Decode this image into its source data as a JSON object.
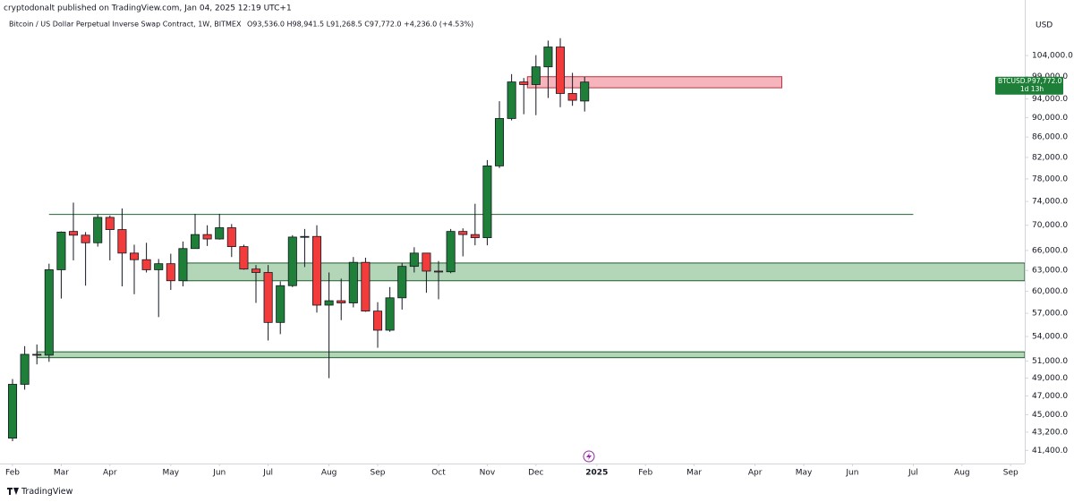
{
  "header": {
    "published": "cryptodonalt published on TradingView.com, Jan 04, 2025 12:19 UTC+1",
    "symbol_line": "Bitcoin / US Dollar Perpetual Inverse Swap Contract, 1W, BITMEX",
    "ohlc": "O93,536.0 H98,941.5 L91,268.5 C97,772.0 +4,236.0 (+4.53%)"
  },
  "footer": {
    "brand": "TradingView"
  },
  "chart_data": {
    "type": "candlestick",
    "axis_unit": "USD",
    "log_scale": true,
    "up_color": "#1e7f38",
    "down_color": "#f23b3b",
    "x": [
      0,
      1,
      2,
      3,
      4,
      5,
      6,
      7,
      8,
      9,
      10,
      11,
      12,
      13,
      14,
      15,
      16,
      17,
      18,
      19,
      20,
      21,
      22,
      23,
      24,
      25,
      26,
      27,
      28,
      29,
      30,
      31,
      32,
      33,
      34,
      35,
      36,
      37,
      38,
      39,
      40,
      41,
      42,
      43,
      44,
      45,
      46,
      47
    ],
    "open": [
      42600,
      48300,
      51800,
      51700,
      63100,
      69000,
      68400,
      67200,
      71300,
      69300,
      65600,
      64600,
      63100,
      64000,
      61500,
      66300,
      68500,
      67800,
      69600,
      66600,
      63200,
      62700,
      55800,
      60800,
      68100,
      68200,
      58100,
      58700,
      58400,
      64200,
      57300,
      54800,
      59100,
      63600,
      65600,
      62900,
      62800,
      69000,
      68500,
      68000,
      80400,
      89800,
      97800,
      97200,
      101300,
      106100,
      95200,
      93536
    ],
    "high": [
      48900,
      52800,
      53000,
      64000,
      69000,
      73800,
      68900,
      71800,
      71600,
      72800,
      66900,
      67200,
      64700,
      65500,
      67400,
      71900,
      70000,
      71900,
      70200,
      66900,
      63800,
      63800,
      61400,
      68400,
      69400,
      70000,
      62700,
      61800,
      65000,
      64900,
      58500,
      60600,
      64100,
      66500,
      65600,
      64400,
      69400,
      69500,
      73600,
      81500,
      93500,
      99600,
      98700,
      104100,
      107700,
      108300,
      99900,
      98941.5
    ],
    "low": [
      42300,
      47700,
      50600,
      50900,
      59000,
      64500,
      60800,
      66600,
      64500,
      60700,
      59600,
      62700,
      56500,
      60200,
      60700,
      66300,
      66700,
      67700,
      65000,
      63100,
      58400,
      53500,
      54300,
      60600,
      63500,
      57100,
      49000,
      56100,
      57800,
      57200,
      52600,
      54600,
      57500,
      62700,
      59800,
      58900,
      62600,
      65100,
      66800,
      66800,
      80000,
      89400,
      90700,
      90500,
      94200,
      92200,
      92500,
      91268.5
    ],
    "close": [
      48300,
      51800,
      51700,
      63100,
      68900,
      68400,
      67200,
      71300,
      69300,
      65600,
      64600,
      63100,
      64000,
      61500,
      66300,
      68500,
      67800,
      69600,
      66600,
      63200,
      62700,
      55800,
      60800,
      68100,
      68200,
      58100,
      58700,
      58400,
      64200,
      57300,
      54800,
      59100,
      63600,
      65600,
      62900,
      62800,
      69000,
      68500,
      68000,
      80400,
      89800,
      97800,
      97200,
      101300,
      106100,
      95200,
      93700,
      97772
    ],
    "xlim": [
      -1.03,
      83.16
    ],
    "ylim": [
      40150,
      118400
    ],
    "xticks": [
      {
        "value": 0,
        "label": "Feb"
      },
      {
        "value": 4,
        "label": "Mar"
      },
      {
        "value": 8,
        "label": "Apr"
      },
      {
        "value": 13,
        "label": "May"
      },
      {
        "value": 17,
        "label": "Jun"
      },
      {
        "value": 21,
        "label": "Jul"
      },
      {
        "value": 26,
        "label": "Aug"
      },
      {
        "value": 30,
        "label": "Sep"
      },
      {
        "value": 35,
        "label": "Oct"
      },
      {
        "value": 39,
        "label": "Nov"
      },
      {
        "value": 43,
        "label": "Dec"
      },
      {
        "value": 48,
        "label": "2025"
      },
      {
        "value": 52,
        "label": "Feb"
      },
      {
        "value": 56,
        "label": "Mar"
      },
      {
        "value": 61,
        "label": "Apr"
      },
      {
        "value": 65,
        "label": "May"
      },
      {
        "value": 69,
        "label": "Jun"
      },
      {
        "value": 74,
        "label": "Jul"
      },
      {
        "value": 78,
        "label": "Aug"
      },
      {
        "value": 82,
        "label": "Sep"
      }
    ],
    "yticks": [
      {
        "value": 104000,
        "label": "104,000.0"
      },
      {
        "value": 99000,
        "label": "99,000.0"
      },
      {
        "value": 94000,
        "label": "94,000.0"
      },
      {
        "value": 90000,
        "label": "90,000.0"
      },
      {
        "value": 86000,
        "label": "86,000.0"
      },
      {
        "value": 82000,
        "label": "82,000.0"
      },
      {
        "value": 78000,
        "label": "78,000.0"
      },
      {
        "value": 74000,
        "label": "74,000.0"
      },
      {
        "value": 70000,
        "label": "70,000.0"
      },
      {
        "value": 66000,
        "label": "66,000.0"
      },
      {
        "value": 63000,
        "label": "63,000.0"
      },
      {
        "value": 60000,
        "label": "60,000.0"
      },
      {
        "value": 57000,
        "label": "57,000.0"
      },
      {
        "value": 54000,
        "label": "54,000.0"
      },
      {
        "value": 51000,
        "label": "51,000.0"
      },
      {
        "value": 49000,
        "label": "49,000.0"
      },
      {
        "value": 47000,
        "label": "47,000.0"
      },
      {
        "value": 45000,
        "label": "45,000.0"
      },
      {
        "value": 43200,
        "label": "43,200.0"
      },
      {
        "value": 41400,
        "label": "41,400.0"
      }
    ],
    "zones": [
      {
        "low": 96470,
        "high": 99000,
        "x_start": 42.3,
        "x_end": 63.2,
        "color": "#f4a7b0",
        "border": "#c2303e"
      },
      {
        "low": 61500,
        "high": 64100,
        "x_start": 14,
        "x_end": 83.16,
        "color": "#a5cfaa",
        "border": "#1e5e2a"
      },
      {
        "low": 51400,
        "high": 52100,
        "x_start": 2,
        "x_end": 83.16,
        "color": "#a5cfaa",
        "border": "#1e5e2a"
      }
    ],
    "levels": [
      {
        "value": 71800,
        "x_start": 3,
        "x_end": 74,
        "color": "#1e6a30"
      }
    ],
    "price_tag": {
      "symbol": "BTCUSD.P",
      "price": "97,772.0",
      "countdown": "1d 13h",
      "color": "#1e7f38"
    }
  }
}
